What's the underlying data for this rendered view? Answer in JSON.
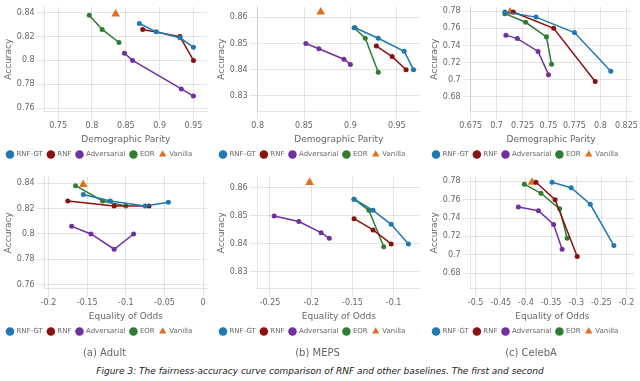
{
  "caption": "Figure 3: The fairness-accuracy curve comparison of RNF and other baselines. The first and second",
  "chart_data": [
    {
      "type": "line",
      "xlabel": "Demographic Parity",
      "ylabel": "Accuracy",
      "xlim": [
        0.73,
        0.97
      ],
      "xticks": [
        0.75,
        0.8,
        0.85,
        0.9,
        0.95
      ],
      "ylim": [
        0.757,
        0.845
      ],
      "yticks": [
        0.76,
        0.78,
        0.8,
        0.82,
        0.84
      ],
      "grid": true,
      "legend": "lower left",
      "series": [
        {
          "name": "RNF-GT",
          "color": "#1f77b4",
          "type": "line",
          "marker": "circle",
          "x": [
            0.87,
            0.895,
            0.93,
            0.95
          ],
          "values": [
            0.831,
            0.824,
            0.819,
            0.811
          ]
        },
        {
          "name": "RNF",
          "color": "#8b1010",
          "type": "line",
          "marker": "circle",
          "x": [
            0.875,
            0.93,
            0.95
          ],
          "values": [
            0.826,
            0.82,
            0.8
          ]
        },
        {
          "name": "Adversarial",
          "color": "#7030a0",
          "type": "line",
          "marker": "circle",
          "x": [
            0.848,
            0.86,
            0.932,
            0.95
          ],
          "values": [
            0.806,
            0.8,
            0.776,
            0.77
          ]
        },
        {
          "name": "EOR",
          "color": "#2e7d32",
          "type": "line",
          "marker": "circle",
          "x": [
            0.796,
            0.815,
            0.84
          ],
          "values": [
            0.838,
            0.826,
            0.815
          ]
        },
        {
          "name": "Vanilla",
          "color": "#e07020",
          "type": "scatter",
          "marker": "triangle",
          "x": [
            0.835
          ],
          "values": [
            0.839
          ]
        }
      ]
    },
    {
      "type": "line",
      "xlabel": "Demographic Parity",
      "ylabel": "Accuracy",
      "xlim": [
        0.8,
        0.975
      ],
      "xticks": [
        0.8,
        0.85,
        0.9,
        0.95
      ],
      "ylim": [
        0.824,
        0.864
      ],
      "yticks": [
        0.83,
        0.84,
        0.85,
        0.86
      ],
      "grid": true,
      "legend": "lower left",
      "series": [
        {
          "name": "RNF-GT",
          "color": "#1f77b4",
          "type": "line",
          "marker": "circle",
          "x": [
            0.905,
            0.93,
            0.958,
            0.968
          ],
          "values": [
            0.856,
            0.852,
            0.847,
            0.84
          ]
        },
        {
          "name": "RNF",
          "color": "#8b1010",
          "type": "line",
          "marker": "circle",
          "x": [
            0.928,
            0.945,
            0.96
          ],
          "values": [
            0.849,
            0.845,
            0.84
          ]
        },
        {
          "name": "Adversarial",
          "color": "#7030a0",
          "type": "line",
          "marker": "circle",
          "x": [
            0.852,
            0.866,
            0.893,
            0.9
          ],
          "values": [
            0.85,
            0.848,
            0.844,
            0.842
          ]
        },
        {
          "name": "EOR",
          "color": "#2e7d32",
          "type": "line",
          "marker": "circle",
          "x": [
            0.904,
            0.916,
            0.93
          ],
          "values": [
            0.856,
            0.852,
            0.839
          ]
        },
        {
          "name": "Vanilla",
          "color": "#e07020",
          "type": "scatter",
          "marker": "triangle",
          "x": [
            0.868
          ],
          "values": [
            0.862
          ]
        }
      ]
    },
    {
      "type": "line",
      "xlabel": "Demographic Parity",
      "ylabel": "Accuracy",
      "xlim": [
        0.675,
        0.83
      ],
      "xticks": [
        0.675,
        0.7,
        0.725,
        0.75,
        0.775,
        0.8,
        0.825
      ],
      "ylim": [
        0.663,
        0.785
      ],
      "yticks": [
        0.68,
        0.7,
        0.72,
        0.74,
        0.76,
        0.78
      ],
      "grid": true,
      "legend": "lower left",
      "series": [
        {
          "name": "RNF-GT",
          "color": "#1f77b4",
          "type": "line",
          "marker": "circle",
          "x": [
            0.708,
            0.738,
            0.775,
            0.81
          ],
          "values": [
            0.779,
            0.773,
            0.755,
            0.71
          ]
        },
        {
          "name": "RNF",
          "color": "#8b1010",
          "type": "line",
          "marker": "circle",
          "x": [
            0.716,
            0.755,
            0.795
          ],
          "values": [
            0.779,
            0.76,
            0.698
          ]
        },
        {
          "name": "Adversarial",
          "color": "#7030a0",
          "type": "line",
          "marker": "circle",
          "x": [
            0.709,
            0.72,
            0.74,
            0.75
          ],
          "values": [
            0.752,
            0.748,
            0.733,
            0.706
          ]
        },
        {
          "name": "EOR",
          "color": "#2e7d32",
          "type": "line",
          "marker": "circle",
          "x": [
            0.708,
            0.728,
            0.748,
            0.753
          ],
          "values": [
            0.777,
            0.767,
            0.75,
            0.718
          ]
        },
        {
          "name": "Vanilla",
          "color": "#e07020",
          "type": "scatter",
          "marker": "triangle",
          "x": [
            0.713
          ],
          "values": [
            0.779
          ]
        }
      ]
    },
    {
      "type": "line",
      "title": "(a) Adult",
      "xlabel": "Equality of Odds",
      "ylabel": "Accuracy",
      "xlim": [
        -0.205,
        0.005
      ],
      "xticks": [
        -0.2,
        -0.15,
        -0.1,
        -0.05,
        0
      ],
      "ylim": [
        0.757,
        0.845
      ],
      "yticks": [
        0.76,
        0.78,
        0.8,
        0.82,
        0.84
      ],
      "grid": true,
      "legend": "lower left",
      "series": [
        {
          "name": "RNF-GT",
          "color": "#1f77b4",
          "type": "line",
          "marker": "circle",
          "x": [
            -0.155,
            -0.12,
            -0.075,
            -0.045
          ],
          "values": [
            0.831,
            0.826,
            0.822,
            0.825
          ]
        },
        {
          "name": "RNF",
          "color": "#8b1010",
          "type": "line",
          "marker": "circle",
          "x": [
            -0.175,
            -0.115,
            -0.07
          ],
          "values": [
            0.826,
            0.822,
            0.822
          ]
        },
        {
          "name": "Adversarial",
          "color": "#7030a0",
          "type": "line",
          "marker": "circle",
          "x": [
            -0.17,
            -0.145,
            -0.115,
            -0.09
          ],
          "values": [
            0.806,
            0.8,
            0.788,
            0.8
          ]
        },
        {
          "name": "EOR",
          "color": "#2e7d32",
          "type": "line",
          "marker": "circle",
          "x": [
            -0.165,
            -0.13,
            -0.1
          ],
          "values": [
            0.838,
            0.826,
            0.822
          ]
        },
        {
          "name": "Vanilla",
          "color": "#e07020",
          "type": "scatter",
          "marker": "triangle",
          "x": [
            -0.155
          ],
          "values": [
            0.839
          ]
        }
      ]
    },
    {
      "type": "line",
      "title": "(b) MEPS",
      "xlabel": "Equality of Odds",
      "ylabel": "Accuracy",
      "xlim": [
        -0.265,
        -0.068
      ],
      "xticks": [
        -0.25,
        -0.2,
        -0.15,
        -0.1
      ],
      "ylim": [
        0.824,
        0.864
      ],
      "yticks": [
        0.83,
        0.84,
        0.85,
        0.86
      ],
      "grid": true,
      "legend": "lower left",
      "series": [
        {
          "name": "RNF-GT",
          "color": "#1f77b4",
          "type": "line",
          "marker": "circle",
          "x": [
            -0.148,
            -0.125,
            -0.103,
            -0.082
          ],
          "values": [
            0.856,
            0.852,
            0.847,
            0.84
          ]
        },
        {
          "name": "RNF",
          "color": "#8b1010",
          "type": "line",
          "marker": "circle",
          "x": [
            -0.148,
            -0.125,
            -0.103
          ],
          "values": [
            0.849,
            0.845,
            0.84
          ]
        },
        {
          "name": "Adversarial",
          "color": "#7030a0",
          "type": "line",
          "marker": "circle",
          "x": [
            -0.245,
            -0.215,
            -0.188,
            -0.178
          ],
          "values": [
            0.85,
            0.848,
            0.844,
            0.842
          ]
        },
        {
          "name": "EOR",
          "color": "#2e7d32",
          "type": "line",
          "marker": "circle",
          "x": [
            -0.148,
            -0.13,
            -0.112
          ],
          "values": [
            0.856,
            0.852,
            0.839
          ]
        },
        {
          "name": "Vanilla",
          "color": "#e07020",
          "type": "scatter",
          "marker": "triangle",
          "x": [
            -0.202
          ],
          "values": [
            0.862
          ]
        }
      ]
    },
    {
      "type": "line",
      "title": "(c) CelebA",
      "xlabel": "Equality of Odds",
      "ylabel": "Accuracy",
      "xlim": [
        -0.51,
        -0.185
      ],
      "xticks": [
        -0.5,
        -0.45,
        -0.4,
        -0.35,
        -0.3,
        -0.25,
        -0.2
      ],
      "ylim": [
        0.663,
        0.785
      ],
      "yticks": [
        0.68,
        0.7,
        0.72,
        0.74,
        0.76,
        0.78
      ],
      "grid": true,
      "legend": "lower left",
      "series": [
        {
          "name": "RNF-GT",
          "color": "#1f77b4",
          "type": "line",
          "marker": "circle",
          "x": [
            -0.348,
            -0.31,
            -0.272,
            -0.225
          ],
          "values": [
            0.779,
            0.773,
            0.755,
            0.71
          ]
        },
        {
          "name": "RNF",
          "color": "#8b1010",
          "type": "line",
          "marker": "circle",
          "x": [
            -0.38,
            -0.342,
            -0.298
          ],
          "values": [
            0.779,
            0.76,
            0.698
          ]
        },
        {
          "name": "Adversarial",
          "color": "#7030a0",
          "type": "line",
          "marker": "circle",
          "x": [
            -0.415,
            -0.375,
            -0.345,
            -0.328
          ],
          "values": [
            0.752,
            0.748,
            0.733,
            0.706
          ]
        },
        {
          "name": "EOR",
          "color": "#2e7d32",
          "type": "line",
          "marker": "circle",
          "x": [
            -0.403,
            -0.37,
            -0.333,
            -0.318
          ],
          "values": [
            0.777,
            0.767,
            0.75,
            0.718
          ]
        },
        {
          "name": "Vanilla",
          "color": "#e07020",
          "type": "scatter",
          "marker": "triangle",
          "x": [
            -0.388
          ],
          "values": [
            0.779
          ]
        }
      ]
    }
  ]
}
